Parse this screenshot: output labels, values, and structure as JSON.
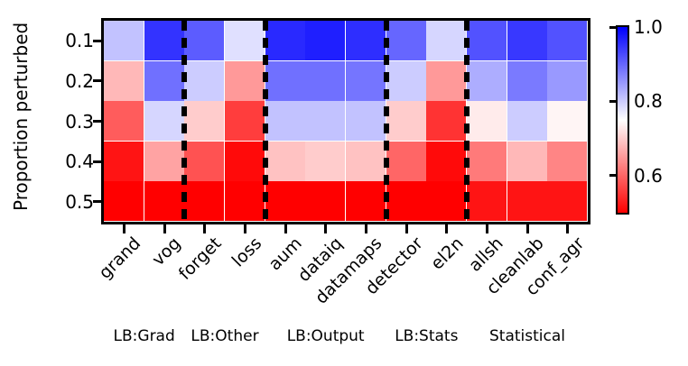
{
  "chart_data": {
    "type": "heatmap",
    "ylabel": "Proportion perturbed",
    "rows": [
      "0.1",
      "0.2",
      "0.3",
      "0.4",
      "0.5"
    ],
    "columns": [
      "grand",
      "vog",
      "forget",
      "loss",
      "aum",
      "dataiq",
      "datamaps",
      "detector",
      "el2n",
      "allsh",
      "cleanlab",
      "conf_agr"
    ],
    "groups": [
      {
        "label": "LB:Grad",
        "ncols": 2
      },
      {
        "label": "LB:Other",
        "ncols": 2
      },
      {
        "label": "LB:Output",
        "ncols": 3
      },
      {
        "label": "LB:Stats",
        "ncols": 2
      },
      {
        "label": "Statistical",
        "ncols": 3
      }
    ],
    "values": [
      [
        0.81,
        0.95,
        0.91,
        0.78,
        0.96,
        0.97,
        0.955,
        0.9,
        0.79,
        0.92,
        0.945,
        0.92
      ],
      [
        0.68,
        0.89,
        0.8,
        0.65,
        0.89,
        0.89,
        0.885,
        0.8,
        0.65,
        0.83,
        0.88,
        0.85
      ],
      [
        0.59,
        0.79,
        0.7,
        0.56,
        0.81,
        0.81,
        0.81,
        0.7,
        0.55,
        0.73,
        0.8,
        0.74
      ],
      [
        0.52,
        0.66,
        0.58,
        0.51,
        0.69,
        0.7,
        0.69,
        0.6,
        0.51,
        0.62,
        0.68,
        0.63
      ],
      [
        0.5,
        0.5,
        0.5,
        0.5,
        0.5,
        0.5,
        0.5,
        0.5,
        0.5,
        0.52,
        0.52,
        0.52
      ]
    ],
    "colormap": {
      "low_color": "#ff0000",
      "mid_color": "#ffffff",
      "high_color": "#0000ff",
      "vmin": 0.5,
      "vmax": 1.0
    },
    "colorbar_ticks": [
      "1.0",
      "0.8",
      "0.6"
    ],
    "grid_color": "#ffffff",
    "legend_position": "right-colorbar",
    "xlabel": ""
  }
}
